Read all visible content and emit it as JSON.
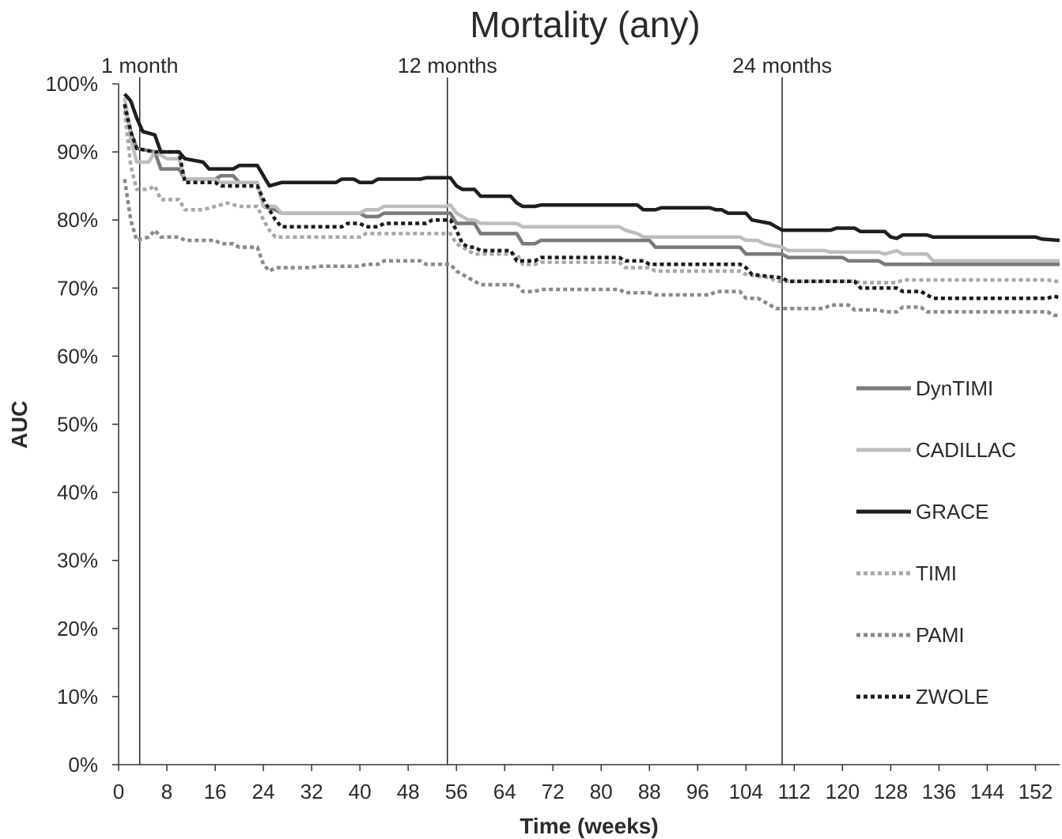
{
  "chart_data": {
    "type": "line",
    "title": "Mortality (any)",
    "xlabel": "Time (weeks)",
    "ylabel": "AUC",
    "xlim": [
      0,
      156
    ],
    "ylim": [
      0,
      100
    ],
    "x_ticks": [
      "0",
      "8",
      "16",
      "24",
      "32",
      "40",
      "48",
      "56",
      "64",
      "72",
      "80",
      "88",
      "96",
      "104",
      "112",
      "120",
      "128",
      "136",
      "144",
      "152"
    ],
    "y_ticks": [
      "0%",
      "10%",
      "20%",
      "30%",
      "40%",
      "50%",
      "60%",
      "70%",
      "80%",
      "90%",
      "100%"
    ],
    "grid": false,
    "legend_position": "right",
    "vertical_markers": [
      {
        "x": 3.5,
        "label": "1 month"
      },
      {
        "x": 54.5,
        "label": "12 months"
      },
      {
        "x": 110,
        "label": "24 months"
      }
    ],
    "series": [
      {
        "name": "DynTIMI",
        "color": "#7a7a7a",
        "dash": "solid",
        "points": [
          [
            1,
            97
          ],
          [
            2,
            93
          ],
          [
            3,
            90.5
          ],
          [
            6,
            90
          ],
          [
            7,
            87.5
          ],
          [
            10,
            87.5
          ],
          [
            11,
            86
          ],
          [
            16,
            86
          ],
          [
            17,
            86.5
          ],
          [
            19,
            86.5
          ],
          [
            20,
            85.5
          ],
          [
            23,
            85.5
          ],
          [
            24,
            82
          ],
          [
            26,
            81.5
          ],
          [
            27,
            81
          ],
          [
            40,
            81
          ],
          [
            41,
            80.5
          ],
          [
            43,
            80.5
          ],
          [
            44,
            81
          ],
          [
            55,
            81
          ],
          [
            56,
            79.5
          ],
          [
            59,
            79.5
          ],
          [
            60,
            78
          ],
          [
            66,
            78
          ],
          [
            67,
            76.5
          ],
          [
            69,
            76.5
          ],
          [
            70,
            77
          ],
          [
            88,
            77
          ],
          [
            89,
            76
          ],
          [
            103,
            76
          ],
          [
            104,
            75
          ],
          [
            110,
            75
          ],
          [
            111,
            74.5
          ],
          [
            120,
            74.5
          ],
          [
            121,
            74
          ],
          [
            126,
            74
          ],
          [
            127,
            73.5
          ],
          [
            156,
            73.5
          ]
        ]
      },
      {
        "name": "CADILLAC",
        "color": "#bdbdbd",
        "dash": "solid",
        "points": [
          [
            1,
            98
          ],
          [
            2,
            92
          ],
          [
            3,
            88.5
          ],
          [
            5,
            88.5
          ],
          [
            6,
            90
          ],
          [
            8,
            89
          ],
          [
            10,
            89
          ],
          [
            11,
            86
          ],
          [
            16,
            86
          ],
          [
            17,
            85.5
          ],
          [
            23,
            85.5
          ],
          [
            24,
            82
          ],
          [
            26,
            82
          ],
          [
            27,
            81
          ],
          [
            40,
            81
          ],
          [
            41,
            81.5
          ],
          [
            43,
            81.5
          ],
          [
            44,
            82
          ],
          [
            53,
            82
          ],
          [
            54,
            82
          ],
          [
            55,
            82.2
          ],
          [
            56,
            81
          ],
          [
            58,
            80
          ],
          [
            59,
            80
          ],
          [
            60,
            79.5
          ],
          [
            66,
            79.5
          ],
          [
            67,
            79
          ],
          [
            83,
            79
          ],
          [
            84,
            78.5
          ],
          [
            86,
            78
          ],
          [
            87,
            77.5
          ],
          [
            103,
            77.5
          ],
          [
            104,
            77
          ],
          [
            106,
            77
          ],
          [
            107,
            76.5
          ],
          [
            110,
            76
          ],
          [
            111,
            75.5
          ],
          [
            117,
            75.5
          ],
          [
            118,
            75.3
          ],
          [
            126,
            75.3
          ],
          [
            127,
            75
          ],
          [
            129,
            75.5
          ],
          [
            130,
            75
          ],
          [
            134,
            75
          ],
          [
            135,
            74
          ],
          [
            156,
            74
          ]
        ]
      },
      {
        "name": "GRACE",
        "color": "#1e1e1e",
        "dash": "solid",
        "points": [
          [
            1,
            98.5
          ],
          [
            2,
            97.5
          ],
          [
            3,
            95
          ],
          [
            4,
            93
          ],
          [
            6,
            92.5
          ],
          [
            7,
            90
          ],
          [
            10,
            90
          ],
          [
            11,
            89
          ],
          [
            14,
            88.5
          ],
          [
            15,
            87.5
          ],
          [
            19,
            87.5
          ],
          [
            20,
            88
          ],
          [
            23,
            88
          ],
          [
            24,
            86.5
          ],
          [
            25,
            85
          ],
          [
            27,
            85.5
          ],
          [
            36,
            85.5
          ],
          [
            37,
            86
          ],
          [
            39,
            86
          ],
          [
            40,
            85.5
          ],
          [
            42,
            85.5
          ],
          [
            43,
            86
          ],
          [
            50,
            86
          ],
          [
            51,
            86.2
          ],
          [
            55,
            86.2
          ],
          [
            56,
            85
          ],
          [
            57,
            84.5
          ],
          [
            59,
            84.5
          ],
          [
            60,
            83.5
          ],
          [
            65,
            83.5
          ],
          [
            66,
            82.5
          ],
          [
            67,
            82
          ],
          [
            69,
            82
          ],
          [
            70,
            82.2
          ],
          [
            86,
            82.2
          ],
          [
            87,
            81.5
          ],
          [
            89,
            81.5
          ],
          [
            90,
            81.8
          ],
          [
            98,
            81.8
          ],
          [
            99,
            81.5
          ],
          [
            100,
            81.5
          ],
          [
            101,
            81
          ],
          [
            104,
            81
          ],
          [
            105,
            80
          ],
          [
            108,
            79.5
          ],
          [
            109,
            79
          ],
          [
            110,
            78.5
          ],
          [
            118,
            78.5
          ],
          [
            119,
            78.8
          ],
          [
            122,
            78.8
          ],
          [
            123,
            78.3
          ],
          [
            127,
            78.3
          ],
          [
            128,
            77.5
          ],
          [
            129,
            77.3
          ],
          [
            130,
            77.8
          ],
          [
            134,
            77.8
          ],
          [
            135,
            77.5
          ],
          [
            152,
            77.5
          ],
          [
            153,
            77.2
          ],
          [
            156,
            77
          ]
        ]
      },
      {
        "name": "TIMI",
        "color": "#a8a8a8",
        "dash": "dotted",
        "points": [
          [
            1,
            96
          ],
          [
            2,
            88
          ],
          [
            3,
            84.5
          ],
          [
            5,
            84.5
          ],
          [
            6,
            85
          ],
          [
            7,
            83
          ],
          [
            10,
            83
          ],
          [
            11,
            81.5
          ],
          [
            14,
            81.5
          ],
          [
            16,
            82
          ],
          [
            18,
            82.5
          ],
          [
            20,
            82
          ],
          [
            23,
            82
          ],
          [
            24,
            80
          ],
          [
            25,
            78.5
          ],
          [
            26,
            77.5
          ],
          [
            40,
            77.5
          ],
          [
            41,
            78
          ],
          [
            55,
            78
          ],
          [
            56,
            76.5
          ],
          [
            58,
            75.5
          ],
          [
            59,
            75
          ],
          [
            66,
            75
          ],
          [
            67,
            73.5
          ],
          [
            69,
            73.5
          ],
          [
            70,
            73.8
          ],
          [
            83,
            73.8
          ],
          [
            84,
            73
          ],
          [
            88,
            73
          ],
          [
            89,
            72.5
          ],
          [
            103,
            72.5
          ],
          [
            104,
            72
          ],
          [
            108,
            71.5
          ],
          [
            109,
            71
          ],
          [
            122,
            71
          ],
          [
            123,
            70.8
          ],
          [
            129,
            70.8
          ],
          [
            130,
            71.2
          ],
          [
            154,
            71.2
          ],
          [
            155,
            71
          ],
          [
            156,
            71
          ]
        ]
      },
      {
        "name": "PAMI",
        "color": "#8a8a8a",
        "dash": "dotted",
        "points": [
          [
            1,
            86
          ],
          [
            2,
            80
          ],
          [
            3,
            77
          ],
          [
            5,
            77.5
          ],
          [
            6,
            78.5
          ],
          [
            7,
            77.5
          ],
          [
            10,
            77.5
          ],
          [
            11,
            77
          ],
          [
            16,
            77
          ],
          [
            17,
            76.5
          ],
          [
            19,
            76.5
          ],
          [
            20,
            76
          ],
          [
            23,
            76
          ],
          [
            24,
            73.5
          ],
          [
            25,
            72.5
          ],
          [
            26,
            73
          ],
          [
            32,
            73
          ],
          [
            33,
            73.2
          ],
          [
            40,
            73.2
          ],
          [
            41,
            73.5
          ],
          [
            43,
            73.5
          ],
          [
            44,
            74
          ],
          [
            50,
            74
          ],
          [
            51,
            73.5
          ],
          [
            55,
            73.5
          ],
          [
            56,
            72.5
          ],
          [
            58,
            71.5
          ],
          [
            59,
            71
          ],
          [
            60,
            70.5
          ],
          [
            66,
            70.5
          ],
          [
            67,
            69.5
          ],
          [
            69,
            69.5
          ],
          [
            70,
            69.8
          ],
          [
            83,
            69.8
          ],
          [
            84,
            69.3
          ],
          [
            88,
            69.3
          ],
          [
            89,
            69
          ],
          [
            98,
            69
          ],
          [
            99,
            69.5
          ],
          [
            103,
            69.5
          ],
          [
            104,
            68.5
          ],
          [
            106,
            68.5
          ],
          [
            107,
            68
          ],
          [
            108,
            67.5
          ],
          [
            109,
            67
          ],
          [
            117,
            67
          ],
          [
            118,
            67.5
          ],
          [
            121,
            67.5
          ],
          [
            122,
            66.8
          ],
          [
            126,
            66.8
          ],
          [
            127,
            66.5
          ],
          [
            129,
            66.5
          ],
          [
            130,
            67.2
          ],
          [
            133,
            67.2
          ],
          [
            134,
            66.5
          ],
          [
            154,
            66.5
          ],
          [
            155,
            66
          ],
          [
            156,
            66
          ]
        ]
      },
      {
        "name": "ZWOLE",
        "color": "#1a1a1a",
        "dash": "dotted",
        "points": [
          [
            1,
            97
          ],
          [
            2,
            93
          ],
          [
            3,
            90.5
          ],
          [
            6,
            90
          ],
          [
            10,
            90
          ],
          [
            11,
            85.5
          ],
          [
            16,
            85.5
          ],
          [
            17,
            85
          ],
          [
            23,
            85
          ],
          [
            24,
            83
          ],
          [
            25,
            81.5
          ],
          [
            26,
            80
          ],
          [
            27,
            79
          ],
          [
            37,
            79
          ],
          [
            38,
            79.5
          ],
          [
            40,
            79.5
          ],
          [
            41,
            79
          ],
          [
            43,
            79
          ],
          [
            44,
            79.5
          ],
          [
            51,
            79.5
          ],
          [
            52,
            80
          ],
          [
            55,
            80
          ],
          [
            56,
            78.5
          ],
          [
            57,
            76.5
          ],
          [
            58,
            76
          ],
          [
            59,
            76
          ],
          [
            60,
            75.5
          ],
          [
            65,
            75.5
          ],
          [
            66,
            74
          ],
          [
            67,
            74
          ],
          [
            69,
            74
          ],
          [
            70,
            74.5
          ],
          [
            83,
            74.5
          ],
          [
            84,
            74
          ],
          [
            87,
            74
          ],
          [
            88,
            73.5
          ],
          [
            103,
            73.5
          ],
          [
            104,
            73
          ],
          [
            105,
            72
          ],
          [
            110,
            71.5
          ],
          [
            111,
            71
          ],
          [
            122,
            71
          ],
          [
            123,
            70
          ],
          [
            129,
            70
          ],
          [
            130,
            69.5
          ],
          [
            133,
            69.5
          ],
          [
            134,
            69
          ],
          [
            135,
            68.5
          ],
          [
            154,
            68.5
          ],
          [
            155,
            68.8
          ],
          [
            156,
            68.6
          ]
        ]
      }
    ]
  }
}
